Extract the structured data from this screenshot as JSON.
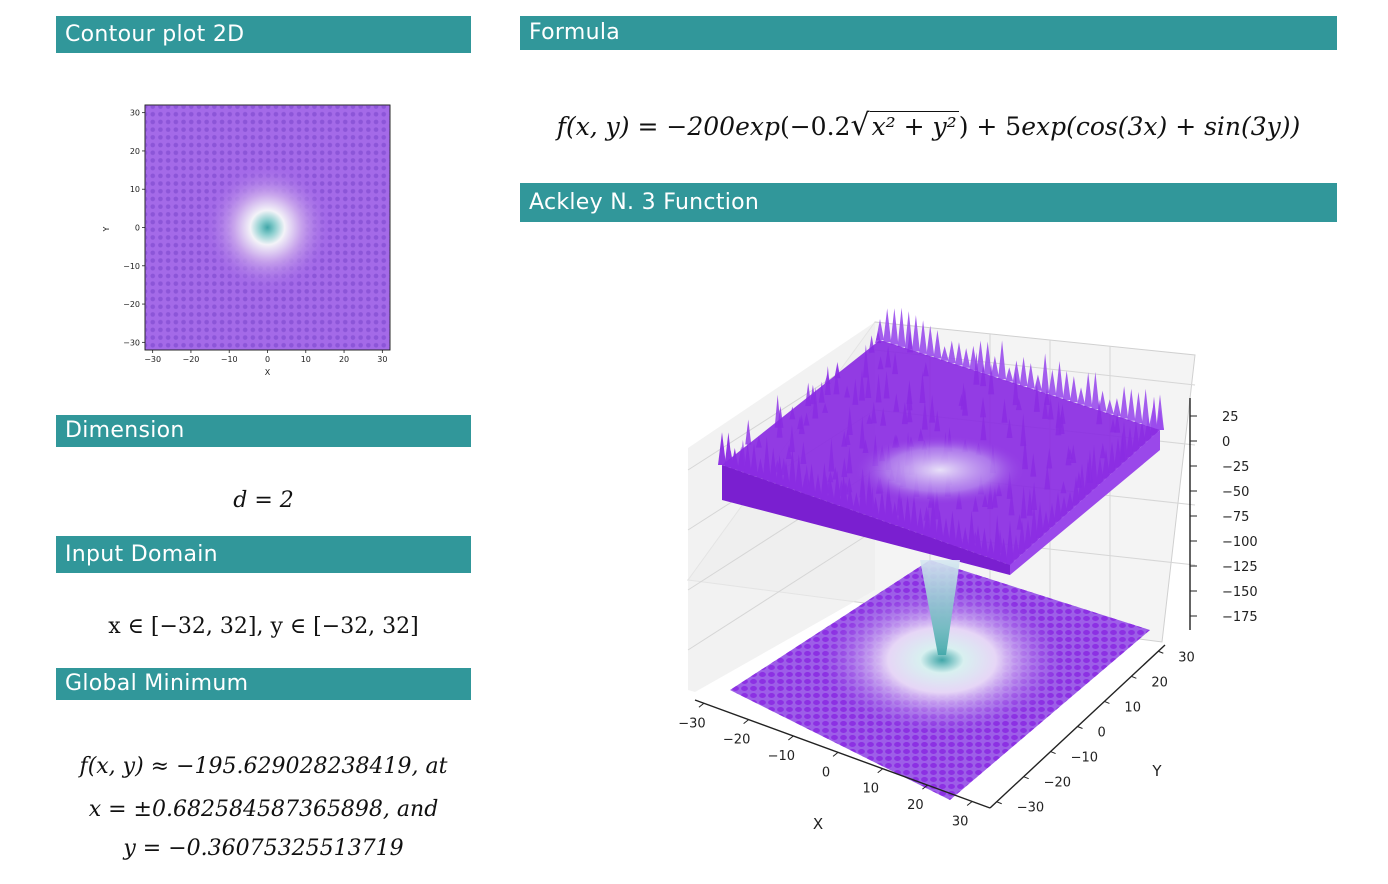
{
  "sections": {
    "contour_title": "Contour plot 2D",
    "formula_title": "Formula",
    "function_title": "Ackley N. 3 Function",
    "dimension_title": "Dimension",
    "domain_title": "Input Domain",
    "minimum_title": "Global Minimum"
  },
  "formula": {
    "lhs": "f(x, y) = −200",
    "exp1": "exp",
    "inner1": "(−0.2",
    "radicand": "x² + y²",
    "close1": ") + 5",
    "exp2": "exp",
    "inner2": "(cos(3x) + sin(3y))"
  },
  "dimension": {
    "text": "d = 2"
  },
  "domain": {
    "text": "x ∈ [−32, 32], y ∈ [−32, 32]"
  },
  "minimum": {
    "line1": "f(x, y) ≈ −195.629028238419, at",
    "line2": "x = ±0.682584587365898, and",
    "line3": "y = −0.36075325513719"
  },
  "contour_plot": {
    "xlabel": "X",
    "ylabel": "Y",
    "xticks": [
      "−30",
      "−20",
      "−10",
      "0",
      "10",
      "20",
      "30"
    ],
    "yticks": [
      "30",
      "20",
      "10",
      "0",
      "−10",
      "−20",
      "−30"
    ],
    "xlim": [
      -32,
      32
    ],
    "ylim": [
      -32,
      32
    ]
  },
  "surface_plot": {
    "xlabel": "X",
    "ylabel": "Y",
    "xticks": [
      "−30",
      "−20",
      "−10",
      "0",
      "10",
      "20",
      "30"
    ],
    "yticks": [
      "30",
      "20",
      "10",
      "0",
      "−10",
      "−20",
      "−30"
    ],
    "zticks": [
      "25",
      "0",
      "−25",
      "−50",
      "−75",
      "−100",
      "−125",
      "−150",
      "−175"
    ]
  },
  "colors": {
    "header_bg": "#31979a",
    "surface_purple": "#8a2be2",
    "center_teal": "#3fa6a8"
  }
}
